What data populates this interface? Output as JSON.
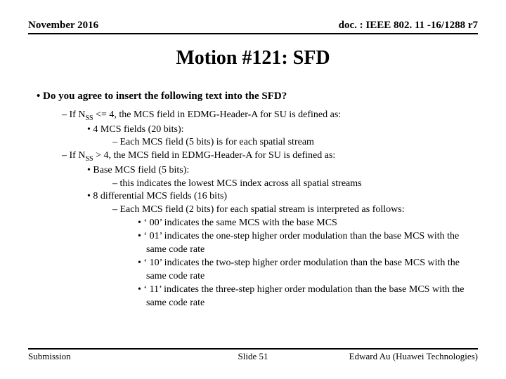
{
  "header": {
    "left": "November 2016",
    "right": "doc. : IEEE 802. 11 -16/1288 r7"
  },
  "title": "Motion #121:  SFD",
  "lead_bullet": "Do you agree to insert the following text into the SFD?",
  "body": {
    "l1a": "– If N",
    "l1a_sub": "SS",
    "l1a_tail": " <= 4, the MCS field in EDMG-Header-A for SU is defined as:",
    "l2a": "•   4 MCS fields (20 bits):",
    "l3a": "–  Each MCS field (5 bits) is for each spatial stream",
    "l1b": "– If N",
    "l1b_sub": "SS",
    "l1b_tail": " > 4, the MCS field in EDMG-Header-A for SU is defined as:",
    "l2b": "•   Base MCS field (5 bits):",
    "l3b": "–  this indicates the lowest MCS index across all spatial streams",
    "l2c": "•   8 differential MCS fields (16 bits)",
    "l3c": "–  Each MCS field (2 bits) for each spatial stream is interpreted as follows:",
    "l4a": "•   ‘ 00’ indicates the same MCS with the base MCS",
    "l4b": "•   ‘ 01’ indicates the one-step higher order modulation than the base MCS with the same code rate",
    "l4c": "•   ‘ 10’ indicates the two-step higher order modulation than the base MCS with the same code rate",
    "l4d": "•   ‘ 11’ indicates the three-step higher order modulation than the base MCS with the same code rate"
  },
  "footer": {
    "left": "Submission",
    "center": "Slide 51",
    "right": "Edward Au (Huawei Technologies)"
  }
}
